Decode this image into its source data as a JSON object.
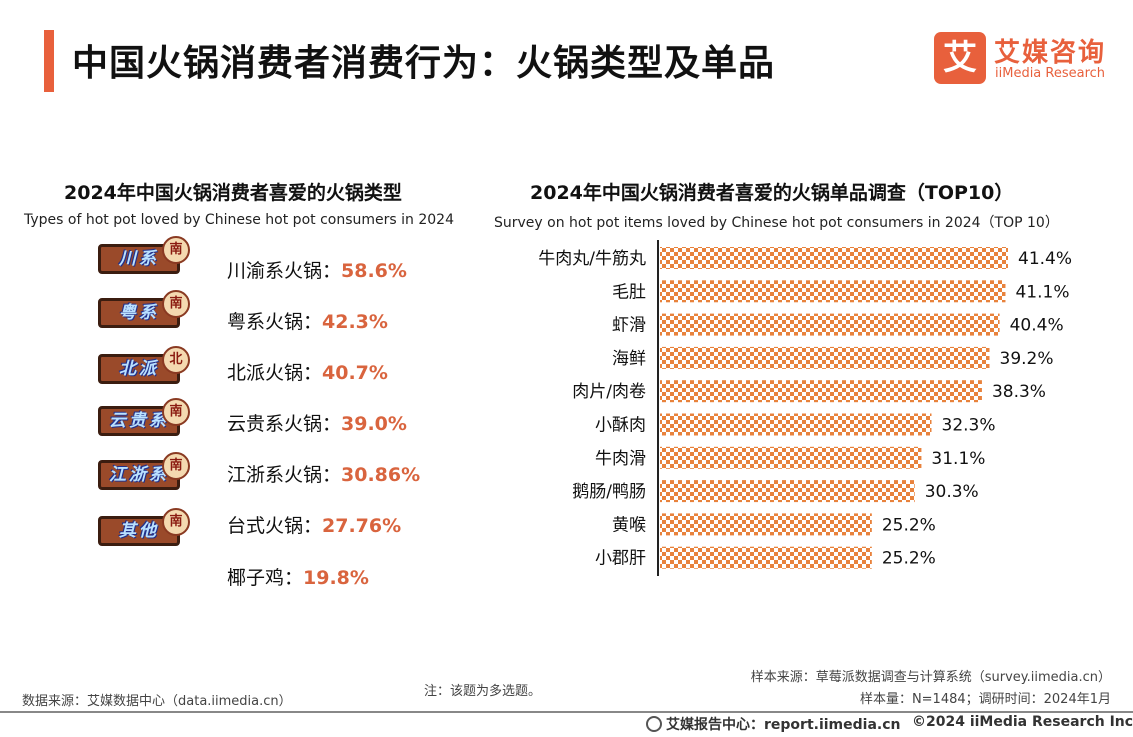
{
  "header": {
    "title": "中国火锅消费者消费行为：火锅类型及单品",
    "logo_mark": "艾",
    "logo_cn": "艾媒咨询",
    "logo_en": "iiMedia Research",
    "accent_color": "#e8603c"
  },
  "left_panel": {
    "title": "2024年中国火锅消费者喜爱的火锅类型",
    "subtitle": "Types of hot pot loved by Chinese hot pot consumers in 2024",
    "pct_color": "#d9643e",
    "types": [
      {
        "label": "川渝系火锅：",
        "value": "58.6%",
        "sign": "川系",
        "badge": "南"
      },
      {
        "label": "粤系火锅：",
        "value": "42.3%",
        "sign": "粤系",
        "badge": "南"
      },
      {
        "label": "北派火锅：",
        "value": "40.7%",
        "sign": "北派",
        "badge": "北"
      },
      {
        "label": "云贵系火锅：",
        "value": "39.0%",
        "sign": "云贵系",
        "badge": "南"
      },
      {
        "label": "江浙系火锅：",
        "value": "30.86%",
        "sign": "江浙系",
        "badge": "南"
      },
      {
        "label": "台式火锅：",
        "value": "27.76%",
        "sign": "其他",
        "badge": "南"
      },
      {
        "label": "椰子鸡：",
        "value": "19.8%"
      }
    ]
  },
  "chart_data": {
    "type": "bar",
    "orientation": "horizontal",
    "title": "2024年中国火锅消费者喜爱的火锅单品调查（TOP10）",
    "subtitle": "Survey on hot pot items loved by Chinese hot pot consumers in 2024（TOP 10）",
    "categories": [
      "牛肉丸/牛筋丸",
      "毛肚",
      "虾滑",
      "海鲜",
      "肉片/肉卷",
      "小酥肉",
      "牛肉滑",
      "鹅肠/鸭肠",
      "黄喉",
      "小郡肝"
    ],
    "values": [
      41.4,
      41.1,
      40.4,
      39.2,
      38.3,
      32.3,
      31.1,
      30.3,
      25.2,
      25.2
    ],
    "value_labels": [
      "41.4%",
      "41.1%",
      "40.4%",
      "39.2%",
      "38.3%",
      "32.3%",
      "31.1%",
      "30.3%",
      "25.2%",
      "25.2%"
    ],
    "bar_color": "#e8823c",
    "bar_pattern": "checkerboard",
    "unit": "%"
  },
  "footer": {
    "data_source": "数据来源：艾媒数据中心（data.iimedia.cn）",
    "note": "注：该题为多选题。",
    "sample_source": "样本来源：草莓派数据调查与计算系统（survey.iimedia.cn）",
    "sample_size": "样本量：N=1484；调研时间：2024年1月",
    "report_center": "艾媒报告中心：report.iimedia.cn",
    "copyright": "©2024  iiMedia Research  Inc"
  }
}
